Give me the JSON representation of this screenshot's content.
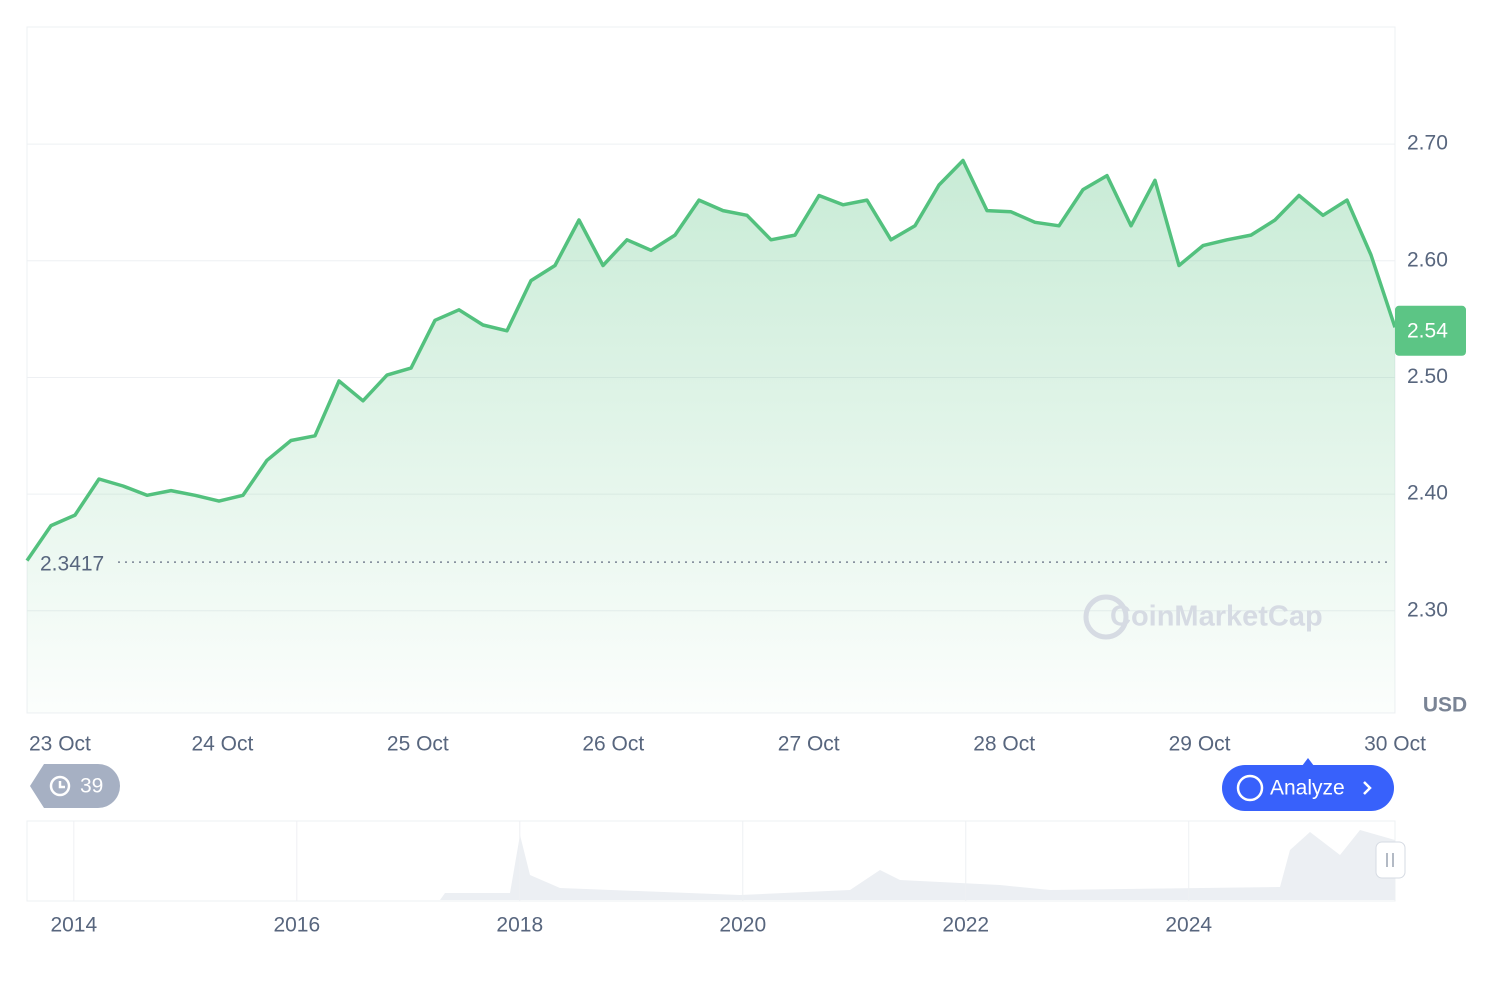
{
  "chart_data": {
    "type": "line",
    "series": [
      {
        "color": "#53c17e",
        "values": [
          2.343,
          2.373,
          2.382,
          2.413,
          2.407,
          2.399,
          2.403,
          2.399,
          2.394,
          2.399,
          2.429,
          2.446,
          2.45,
          2.497,
          2.48,
          2.502,
          2.508,
          2.549,
          2.558,
          2.545,
          2.54,
          2.583,
          2.596,
          2.635,
          2.596,
          2.618,
          2.609,
          2.622,
          2.652,
          2.643,
          2.639,
          2.618,
          2.622,
          2.656,
          2.648,
          2.652,
          2.618,
          2.63,
          2.665,
          2.686,
          2.643,
          2.642,
          2.633,
          2.63,
          2.661,
          2.673,
          2.63,
          2.669,
          2.596,
          2.613,
          2.618,
          2.622,
          2.635,
          2.656,
          2.639,
          2.652,
          2.605,
          2.543
        ]
      }
    ],
    "xlim": [
      0,
      7
    ],
    "xticks": [
      {
        "value": 0,
        "label": "23 Oct"
      },
      {
        "value": 1,
        "label": "24 Oct"
      },
      {
        "value": 2,
        "label": "25 Oct"
      },
      {
        "value": 3,
        "label": "26 Oct"
      },
      {
        "value": 4,
        "label": "27 Oct"
      },
      {
        "value": 5,
        "label": "28 Oct"
      },
      {
        "value": 6,
        "label": "29 Oct"
      },
      {
        "value": 7,
        "label": "30 Oct"
      }
    ],
    "ylim": [
      2.2124,
      2.8004
    ],
    "yticks": [
      {
        "value": 2.3,
        "label": "2.30"
      },
      {
        "value": 2.4,
        "label": "2.40"
      },
      {
        "value": 2.5,
        "label": "2.50"
      },
      {
        "value": 2.6,
        "label": "2.60"
      },
      {
        "value": 2.7,
        "label": "2.70"
      }
    ],
    "grid": true,
    "open_price": 2.3417,
    "current_price": 2.54,
    "unit": "USD"
  },
  "watermark": "CoinMarketCap",
  "history_count": 39,
  "analyze_button": "Analyze",
  "navigator": {
    "xlim": [
      2013.58,
      2025.85
    ],
    "xticks": [
      2014,
      2016,
      2018,
      2020,
      2022,
      2024
    ]
  }
}
